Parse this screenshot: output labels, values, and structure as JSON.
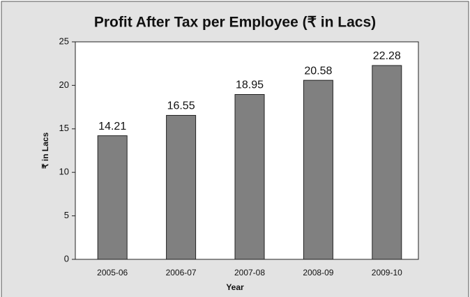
{
  "chart_data": {
    "type": "bar",
    "title": "Profit After Tax per Employee (₹ in Lacs)",
    "x_label": "Year",
    "y_label": "₹ in Lacs",
    "categories": [
      "2005-06",
      "2006-07",
      "2007-08",
      "2008-09",
      "2009-10"
    ],
    "values": [
      14.21,
      16.55,
      18.95,
      20.58,
      22.28
    ],
    "color": "#808080",
    "ylim": [
      0,
      25
    ],
    "yticks": [
      0,
      5,
      10,
      15,
      20,
      25
    ],
    "grid": false
  }
}
